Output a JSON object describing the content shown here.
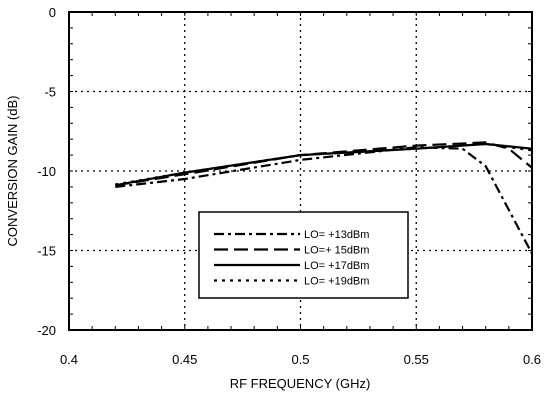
{
  "chart_data": {
    "type": "line",
    "title": "",
    "xlabel": "RF FREQUENCY (GHz)",
    "ylabel": "CONVERSION GAIN (dB)",
    "xlim": [
      0.4,
      0.6
    ],
    "ylim": [
      -20,
      0
    ],
    "x_ticks": [
      0.4,
      0.45,
      0.5,
      0.55,
      0.6
    ],
    "x_tick_labels": [
      "0.4",
      "0.45",
      "0.5",
      "0.55",
      "0.6"
    ],
    "y_ticks": [
      -20,
      -15,
      -10,
      -5,
      0
    ],
    "y_tick_labels": [
      "-20",
      "-15",
      "-10",
      "-5",
      "0"
    ],
    "grid": true,
    "legend_position": "bottom-center",
    "series": [
      {
        "name": "LO= +13dBm",
        "dash": "dash-dot",
        "x": [
          0.42,
          0.45,
          0.5,
          0.55,
          0.57,
          0.58,
          0.6
        ],
        "y": [
          -11.0,
          -10.5,
          -9.3,
          -8.5,
          -8.6,
          -9.7,
          -15.2
        ]
      },
      {
        "name": "LO=+ 15dBm",
        "dash": "long-dash",
        "x": [
          0.42,
          0.45,
          0.5,
          0.55,
          0.58,
          0.59,
          0.6
        ],
        "y": [
          -10.9,
          -10.2,
          -9.0,
          -8.4,
          -8.2,
          -8.6,
          -9.8
        ]
      },
      {
        "name": "LO= +17dBm",
        "dash": "solid",
        "x": [
          0.42,
          0.45,
          0.5,
          0.55,
          0.58,
          0.6
        ],
        "y": [
          -10.9,
          -10.1,
          -9.0,
          -8.6,
          -8.3,
          -8.6
        ]
      },
      {
        "name": "LO= +19dBm",
        "dash": "dotted",
        "x": [
          0.42,
          0.45,
          0.5,
          0.55,
          0.58,
          0.6
        ],
        "y": [
          -10.85,
          -10.1,
          -9.0,
          -8.6,
          -8.3,
          -8.7
        ]
      }
    ]
  }
}
